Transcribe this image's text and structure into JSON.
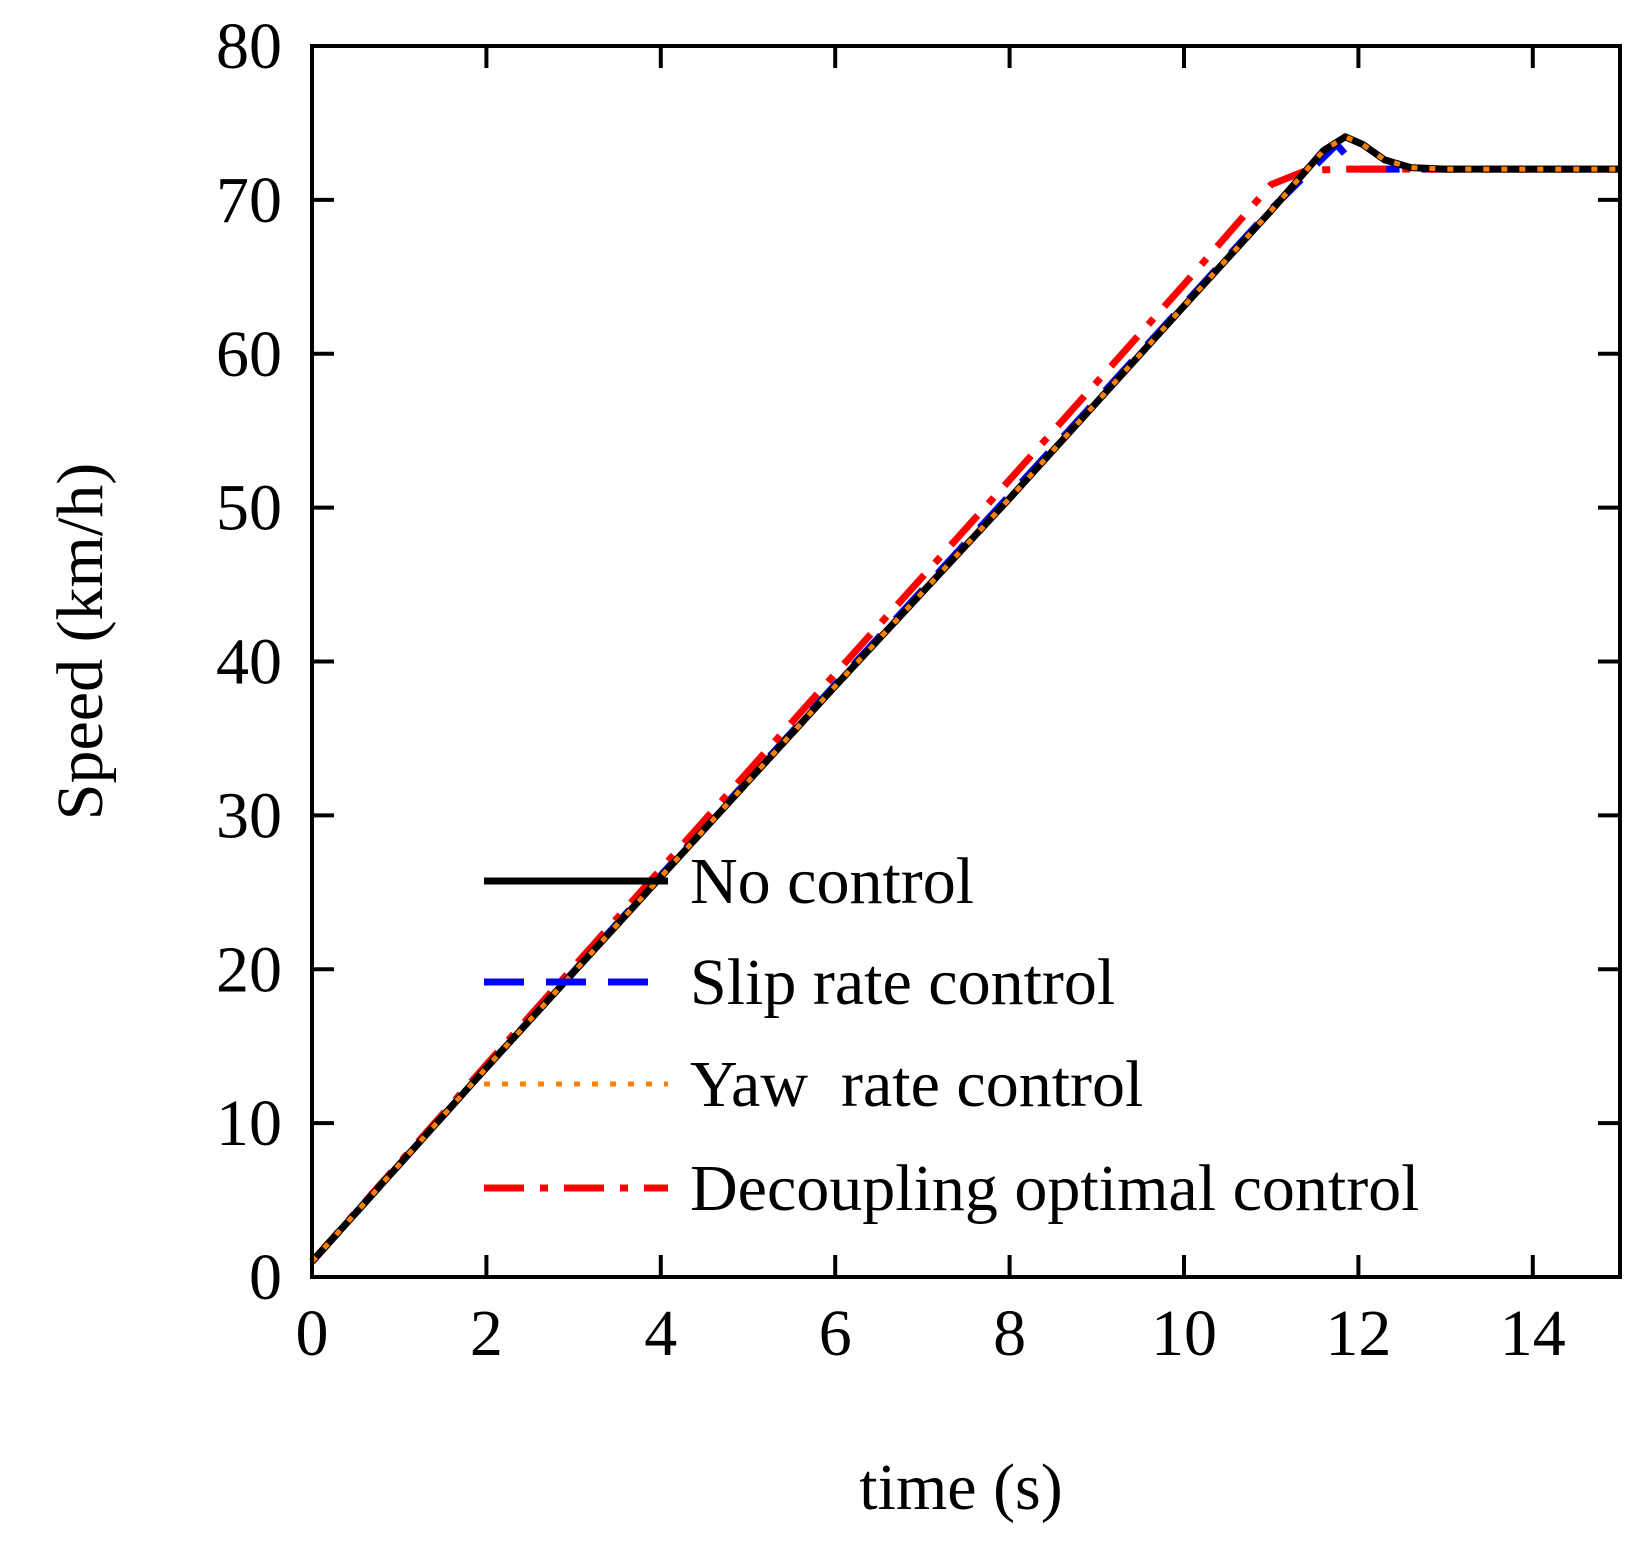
{
  "chart_data": {
    "type": "line",
    "title": "",
    "xlabel": "time (s)",
    "ylabel": "Speed (km/h)",
    "xlim": [
      0,
      15
    ],
    "ylim": [
      0,
      80
    ],
    "xticks": [
      0,
      2,
      4,
      6,
      8,
      10,
      12,
      14
    ],
    "yticks": [
      0,
      10,
      20,
      30,
      40,
      50,
      60,
      70,
      80
    ],
    "grid": false,
    "legend_position": "bottom-right",
    "series": [
      {
        "name": "No control",
        "color": "#000000",
        "style": "solid",
        "x": [
          0,
          2,
          4,
          6,
          8,
          10,
          11,
          11.6,
          11.85,
          12.05,
          12.3,
          12.6,
          13,
          15
        ],
        "y": [
          1,
          13.6,
          26,
          38.4,
          50.6,
          63.1,
          69.3,
          73.2,
          74.1,
          73.6,
          72.6,
          72.1,
          72,
          72
        ]
      },
      {
        "name": "Slip rate control",
        "color": "#0000ff",
        "style": "dashed",
        "x": [
          0,
          2,
          4,
          6,
          8,
          10,
          11,
          11.75,
          12,
          13,
          15
        ],
        "y": [
          1,
          13.6,
          26.1,
          38.5,
          50.8,
          63.2,
          69.4,
          73.6,
          72,
          72,
          72
        ]
      },
      {
        "name": "Yaw  rate control",
        "color": "#ff8000",
        "style": "dotted",
        "x": [
          0,
          2,
          4,
          6,
          8,
          10,
          11,
          11.6,
          11.85,
          12.05,
          12.3,
          12.6,
          13,
          15
        ],
        "y": [
          1,
          13.6,
          26,
          38.4,
          50.6,
          63.1,
          69.3,
          73.2,
          74.1,
          73.6,
          72.6,
          72.1,
          72,
          72
        ]
      },
      {
        "name": "Decoupling optimal control",
        "color": "#ff0000",
        "style": "dashdot",
        "x": [
          0,
          2,
          4,
          6,
          8,
          10,
          11,
          11.4,
          11.8,
          15
        ],
        "y": [
          1,
          13.8,
          26.5,
          39.2,
          51.8,
          64.5,
          71,
          71.9,
          72,
          72
        ]
      }
    ]
  }
}
